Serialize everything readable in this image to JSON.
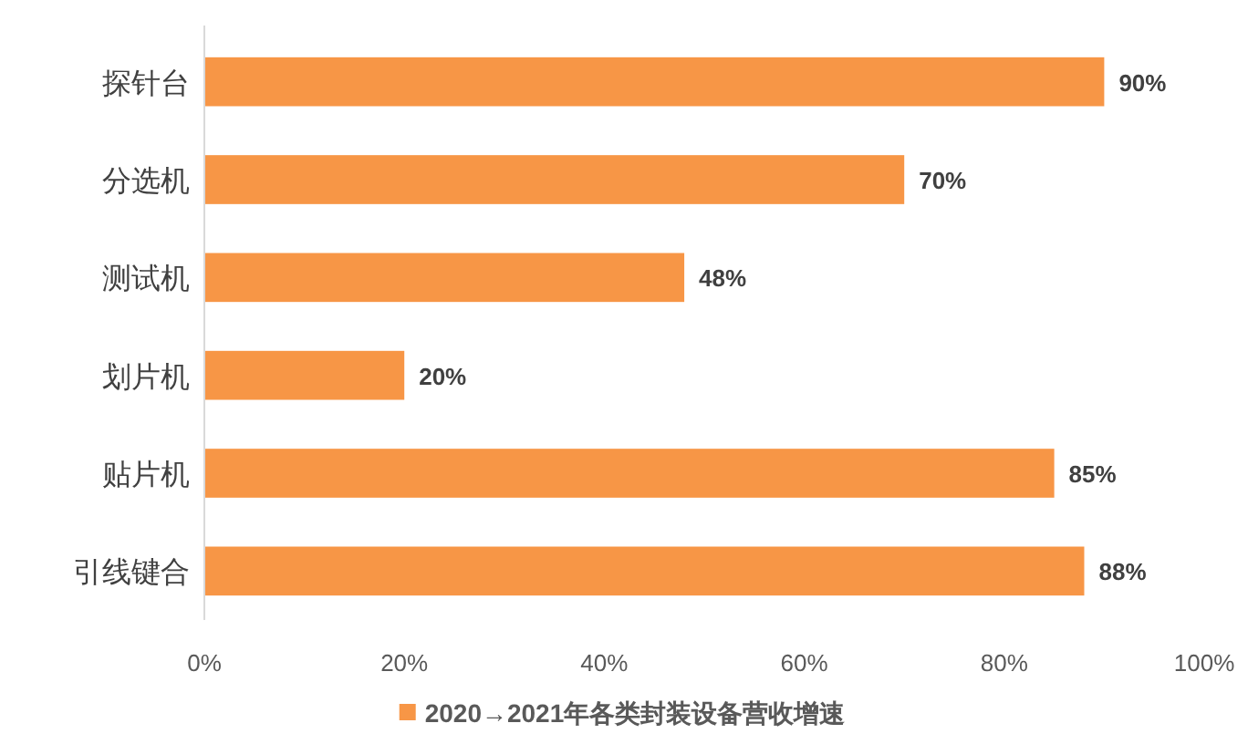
{
  "chart_data": {
    "type": "bar",
    "orientation": "horizontal",
    "categories": [
      "探针台",
      "分选机",
      "测试机",
      "划片机",
      "贴片机",
      "引线键合"
    ],
    "series": [
      {
        "name": "2020→2021年各类封装设备营收增速",
        "color": "#f79646",
        "values": [
          90,
          70,
          48,
          20,
          85,
          88
        ],
        "value_labels": [
          "90%",
          "70%",
          "48%",
          "20%",
          "85%",
          "88%"
        ]
      }
    ],
    "xlim": [
      0,
      100
    ],
    "xticks": [
      {
        "value": 0,
        "label": "0%"
      },
      {
        "value": 20,
        "label": "20%"
      },
      {
        "value": 40,
        "label": "40%"
      },
      {
        "value": 60,
        "label": "60%"
      },
      {
        "value": 80,
        "label": "80%"
      },
      {
        "value": 100,
        "label": "100%"
      }
    ],
    "grid": false,
    "legend": "bottom"
  }
}
